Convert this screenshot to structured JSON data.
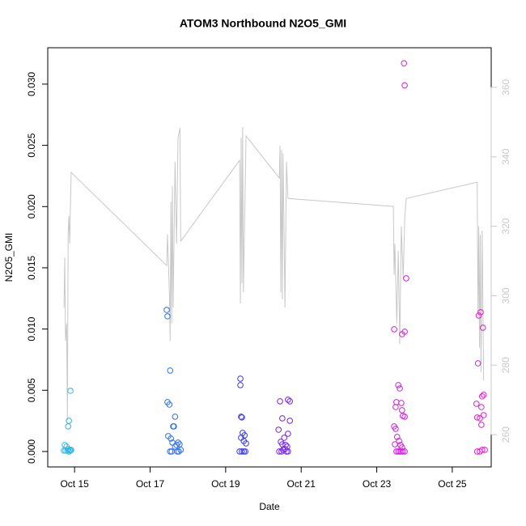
{
  "chart_data": {
    "type": "scatter",
    "title": "ATOM3 Northbound N2O5_GMI",
    "xlabel": "Date",
    "ylabel": "N2O5_GMI",
    "xlim": [
      14.29,
      26.03
    ],
    "xticks": [
      {
        "value": 15,
        "label": "Oct 15"
      },
      {
        "value": 17,
        "label": "Oct 17"
      },
      {
        "value": 19,
        "label": "Oct 19"
      },
      {
        "value": 21,
        "label": "Oct 21"
      },
      {
        "value": 23,
        "label": "Oct 23"
      },
      {
        "value": 25,
        "label": "Oct 25"
      }
    ],
    "ylim": [
      -0.00126,
      0.03297
    ],
    "yticks": [
      {
        "value": 0,
        "label": "0.000"
      },
      {
        "value": 0.005,
        "label": "0.005"
      },
      {
        "value": 0.01,
        "label": "0.010"
      },
      {
        "value": 0.015,
        "label": "0.015"
      },
      {
        "value": 0.02,
        "label": "0.020"
      },
      {
        "value": 0.025,
        "label": "0.025"
      },
      {
        "value": 0.03,
        "label": "0.030"
      }
    ],
    "y2lim": [
      250.7,
      371.4
    ],
    "y2ticks": [
      260,
      280,
      300,
      320,
      340,
      360
    ],
    "y2color": "#c8c8c8",
    "series": [
      {
        "type": "scatter",
        "color": "#33b5e5",
        "x": [
          14.89,
          14.85,
          14.83,
          14.74,
          14.79,
          14.83,
          14.87,
          14.91,
          14.72,
          14.76,
          14.81,
          14.85,
          14.89
        ],
        "values": [
          0.00496,
          0.00251,
          0.00205,
          0.00053,
          0.0004,
          0.0002,
          0.00013,
          0.00013,
          7e-05,
          7e-05,
          7e-05,
          0,
          7e-05
        ]
      },
      {
        "type": "scatter",
        "color": "#3070e8",
        "x": [
          17.44,
          17.46,
          17.53,
          17.46,
          17.51,
          17.66,
          17.61,
          17.63,
          17.48,
          17.55,
          17.59,
          17.74,
          17.78,
          17.7,
          17.66,
          17.53,
          17.57,
          17.72,
          17.76,
          17.81
        ],
        "values": [
          0.01156,
          0.01104,
          0.00661,
          0.00403,
          0.00383,
          0.00284,
          0.00205,
          0.00205,
          0.00126,
          0.00106,
          0.00073,
          0.00073,
          0.00059,
          0.00053,
          0.0004,
          0,
          0,
          0,
          0,
          0.00013
        ]
      },
      {
        "type": "scatter",
        "color": "#3a3ae8",
        "x": [
          19.39,
          19.39,
          19.41,
          19.43,
          19.45,
          19.5,
          19.41,
          19.48,
          19.54,
          19.37,
          19.43,
          19.48,
          19.52
        ],
        "values": [
          0.00595,
          0.00542,
          0.00284,
          0.00278,
          0.00152,
          0.00132,
          0.00112,
          0.00086,
          0.00066,
          0,
          0,
          0,
          0
        ]
      },
      {
        "type": "scatter",
        "color": "#7a22e8",
        "x": [
          20.44,
          20.65,
          20.7,
          20.5,
          20.7,
          20.4,
          20.65,
          20.55,
          20.46,
          20.5,
          20.59,
          20.63,
          20.42,
          20.48,
          20.52,
          20.57,
          20.61,
          20.65
        ],
        "values": [
          0.0041,
          0.00423,
          0.0041,
          0.00271,
          0.00251,
          0.00178,
          0.00145,
          0.00112,
          0.00079,
          0.00059,
          0.00053,
          0.0004,
          0,
          0,
          0.00013,
          0.0002,
          0,
          0
        ]
      },
      {
        "type": "scatter",
        "color": "#d020e0",
        "x": [
          23.72,
          23.74,
          23.78,
          23.46,
          23.74,
          23.67,
          23.57,
          23.61,
          23.52,
          23.5,
          23.65,
          23.67,
          23.69,
          23.74,
          23.46,
          23.5,
          23.54,
          23.59,
          23.48,
          23.63,
          23.67,
          23.52,
          23.57,
          23.61,
          23.65,
          23.69,
          23.74
        ],
        "values": [
          0.0317,
          0.0299,
          0.01414,
          0.00998,
          0.00978,
          0.00958,
          0.00542,
          0.00515,
          0.00403,
          0.00363,
          0.00396,
          0.00337,
          0.00291,
          0.00284,
          0.00205,
          0.00185,
          0.00119,
          0.00086,
          0.00059,
          0.00053,
          0.00033,
          0,
          0,
          0,
          0,
          0,
          0
        ]
      },
      {
        "type": "scatter",
        "color": "#e020c8",
        "x": [
          25.75,
          25.7,
          25.81,
          25.68,
          25.83,
          25.79,
          25.64,
          25.77,
          25.83,
          25.66,
          25.73,
          25.77,
          25.66,
          25.73,
          25.79,
          25.86
        ],
        "values": [
          0.01137,
          0.0111,
          0.01011,
          0.0072,
          0.00463,
          0.0045,
          0.0039,
          0.00363,
          0.00297,
          0.00278,
          0.00271,
          0.00218,
          0,
          0,
          0.00013,
          0.00013
        ]
      },
      {
        "type": "line",
        "axis": "y2",
        "color": "#c8c8c8",
        "x": [
          14.72,
          14.74,
          14.76,
          14.79,
          14.81,
          14.83,
          14.85,
          14.87,
          14.91,
          17.44,
          17.46,
          17.51,
          17.53,
          17.55,
          17.57,
          17.59,
          17.61,
          17.66,
          17.7,
          17.74,
          17.79,
          17.81,
          19.37,
          19.39,
          19.41,
          19.43,
          19.45,
          19.47,
          19.54,
          20.42,
          20.44,
          20.46,
          20.48,
          20.5,
          20.52,
          20.57,
          20.61,
          20.65,
          23.44,
          23.46,
          23.48,
          23.53,
          23.57,
          23.61,
          23.65,
          23.7,
          23.74,
          23.78,
          25.66,
          25.68,
          25.7,
          25.72,
          25.74,
          25.76,
          25.79,
          25.83
        ],
        "values": [
          296.6,
          311,
          287,
          292,
          264,
          317.6,
          323,
          315,
          335.5,
          308.7,
          317.6,
          301,
          287,
          327,
          292,
          331.6,
          296.6,
          338.6,
          315,
          345.5,
          348.3,
          315.7,
          339,
          297.8,
          345.5,
          303.6,
          348.6,
          301,
          346,
          333.9,
          343.2,
          301,
          342,
          299,
          341,
          296.6,
          338.6,
          328,
          325.7,
          306,
          315,
          292,
          313,
          286,
          320,
          304.8,
          322,
          328,
          332.7,
          294,
          320,
          285,
          317.6,
          278,
          318.7,
          275.6
        ]
      }
    ]
  }
}
